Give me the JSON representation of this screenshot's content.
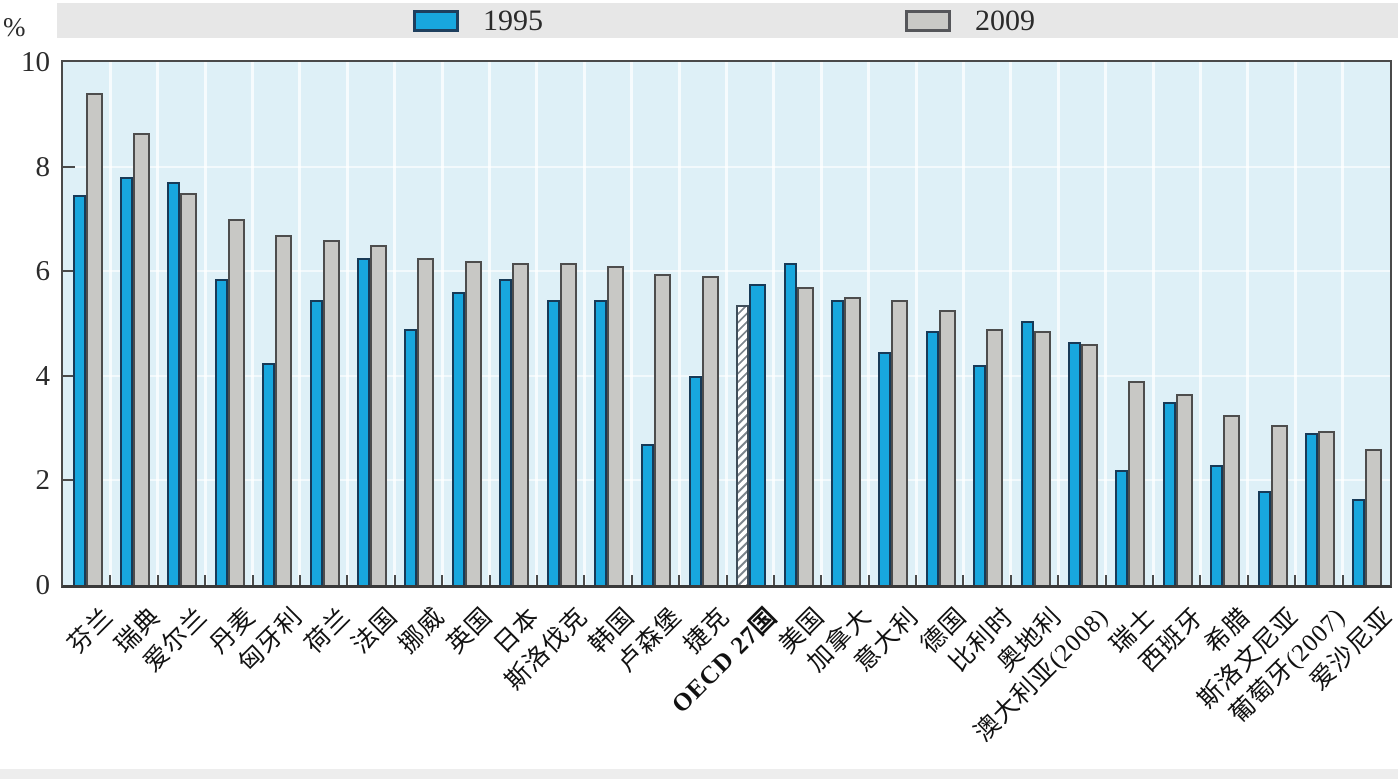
{
  "page": {
    "percent_label": "%"
  },
  "legend": {
    "items": [
      {
        "label": "1995",
        "swatch": "blue-solid"
      },
      {
        "label": "2009",
        "swatch": "gray-solid"
      }
    ]
  },
  "colors": {
    "bar_1995": "#18a7de",
    "bar_2009": "#c8c8c5",
    "bar_1995_border": "#173a57",
    "bar_2009_border": "#4d4d4d",
    "plot_background": "#def0f7",
    "legend_band": "#e7e7e7",
    "frame": "#4a4a4a"
  },
  "chart_data": {
    "type": "bar",
    "title": "",
    "unit": "%",
    "xlabel": "",
    "ylabel": "%",
    "ylim": [
      0,
      10
    ],
    "yticks": [
      0,
      2,
      4,
      6,
      8,
      10
    ],
    "grid": true,
    "legend_position": "top",
    "categories": [
      "芬兰",
      "瑞典",
      "爱尔兰",
      "丹麦",
      "匈牙利",
      "荷兰",
      "法国",
      "挪威",
      "英国",
      "日本",
      "斯洛伐克",
      "韩国",
      "卢森堡",
      "捷克",
      "OECD 27国",
      "美国",
      "加拿大",
      "意大利",
      "德国",
      "比利时",
      "奥地利",
      "澳大利亚(2008)",
      "瑞士",
      "西班牙",
      "希腊",
      "斯洛文尼亚",
      "葡萄牙(2007)",
      "爱沙尼亚"
    ],
    "series": [
      {
        "name": "1995",
        "values": [
          7.45,
          7.8,
          7.7,
          5.85,
          4.25,
          5.45,
          6.25,
          4.9,
          5.6,
          5.85,
          5.45,
          5.45,
          2.7,
          4.0,
          5.35,
          6.15,
          5.45,
          4.45,
          4.85,
          4.2,
          5.05,
          4.65,
          2.2,
          3.5,
          2.3,
          1.8,
          2.9,
          1.65
        ]
      },
      {
        "name": "2009",
        "values": [
          9.4,
          8.65,
          7.5,
          7.0,
          6.7,
          6.6,
          6.5,
          6.25,
          6.2,
          6.15,
          6.15,
          6.1,
          5.95,
          5.9,
          5.75,
          5.7,
          5.5,
          5.45,
          5.25,
          4.9,
          4.85,
          4.6,
          3.9,
          3.65,
          3.25,
          3.05,
          2.95,
          2.6
        ]
      }
    ],
    "highlight": {
      "category": "OECD 27国",
      "bold_label": true,
      "bar_1995_style": "white-diagonal-hatch",
      "bar_2009_style": "solid-blue"
    }
  }
}
